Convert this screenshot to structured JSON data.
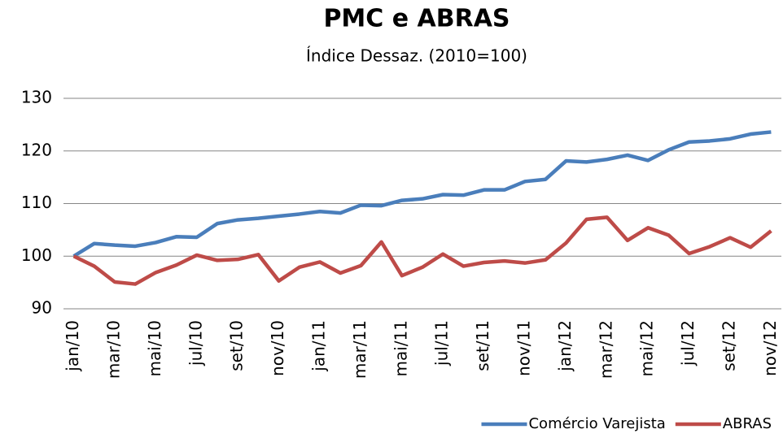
{
  "chart_data": {
    "type": "line",
    "title": "PMC e ABRAS",
    "subtitle": "Índice Dessaz. (2010=100)",
    "categories": [
      "jan/10",
      null,
      "mar/10",
      null,
      "mai/10",
      null,
      "jul/10",
      null,
      "set/10",
      null,
      "nov/10",
      null,
      "jan/11",
      null,
      "mar/11",
      null,
      "mai/11",
      null,
      "jul/11",
      null,
      "set/11",
      null,
      "nov/11",
      null,
      "jan/12",
      null,
      "mar/12",
      null,
      "mai/12",
      null,
      "jul/12",
      null,
      "set/12",
      null,
      "nov/12"
    ],
    "series": [
      {
        "name": "Comércio Varejista",
        "color": "#4a7ebb",
        "values": [
          100,
          102.4,
          102.1,
          101.9,
          102.6,
          103.7,
          103.6,
          106.2,
          106.9,
          107.2,
          107.6,
          108.0,
          108.5,
          108.2,
          109.7,
          109.6,
          110.6,
          110.9,
          111.7,
          111.6,
          112.6,
          112.6,
          114.2,
          114.6,
          118.1,
          117.9,
          118.4,
          119.2,
          118.2,
          120.2,
          121.7,
          121.9,
          122.3,
          123.2,
          123.6
        ]
      },
      {
        "name": "ABRAS",
        "color": "#be4b48",
        "values": [
          100,
          98.1,
          95.1,
          94.7,
          96.9,
          98.3,
          100.2,
          99.2,
          99.4,
          100.3,
          95.3,
          97.9,
          98.9,
          96.8,
          98.2,
          102.7,
          96.3,
          97.9,
          100.4,
          98.1,
          98.8,
          99.1,
          98.7,
          99.3,
          102.5,
          107.0,
          107.4,
          103.0,
          105.4,
          104.0,
          100.5,
          101.8,
          103.5,
          101.7,
          104.8
        ]
      }
    ],
    "ylim": [
      90,
      130
    ],
    "yticks": [
      90,
      100,
      110,
      120,
      130
    ],
    "grid": true,
    "legend": "bottom-right"
  }
}
